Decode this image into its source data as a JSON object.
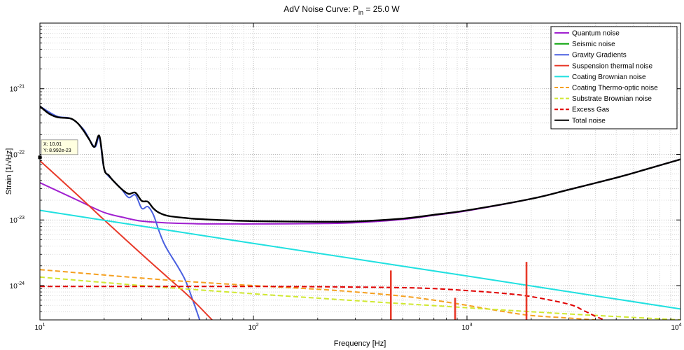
{
  "chart_data": {
    "type": "line",
    "title": "AdV Noise Curve: P",
    "title_sub": "in",
    "title_rest": " = 25.0 W",
    "xlabel": "Frequency [Hz]",
    "ylabel": "Strain [1/√Hz]",
    "xscale": "log",
    "yscale": "log",
    "xlim": [
      10,
      10000
    ],
    "ylim": [
      3e-25,
      1e-20
    ],
    "grid": true,
    "legend_position": "top-right",
    "x_ticks": [
      {
        "base": "10",
        "exp": "1",
        "value": 10
      },
      {
        "base": "10",
        "exp": "2",
        "value": 100
      },
      {
        "base": "10",
        "exp": "3",
        "value": 1000
      },
      {
        "base": "10",
        "exp": "4",
        "value": 10000
      }
    ],
    "y_ticks": [
      {
        "base": "10",
        "exp": "-24",
        "value": 1e-24
      },
      {
        "base": "10",
        "exp": "-23",
        "value": 1e-23
      },
      {
        "base": "10",
        "exp": "-22",
        "value": 1e-22
      },
      {
        "base": "10",
        "exp": "-21",
        "value": 1e-21
      }
    ],
    "series": [
      {
        "name": "Quantum noise",
        "color": "#a020d0",
        "dash": "solid",
        "width": 2,
        "x": [
          10,
          15,
          20,
          25,
          30,
          40,
          50,
          60,
          80,
          100,
          200,
          300,
          500,
          700,
          1000,
          2000,
          3000,
          5000,
          7000,
          10000
        ],
        "y": [
          3.7e-23,
          2e-23,
          1.3e-23,
          1.08e-23,
          9.6e-24,
          9e-24,
          8.8e-24,
          8.7e-24,
          8.7e-24,
          8.7e-24,
          8.8e-24,
          9.1e-24,
          1.02e-23,
          1.18e-23,
          1.38e-23,
          2.1e-23,
          2.9e-23,
          4.4e-23,
          6e-23,
          8.4e-23
        ]
      },
      {
        "name": "Seismic noise",
        "color": "#00a000",
        "dash": "solid",
        "width": 2,
        "x": [],
        "y": []
      },
      {
        "name": "Gravity Gradients",
        "color": "#4a60e0",
        "dash": "solid",
        "width": 2,
        "x": [
          10,
          12,
          14,
          16,
          18,
          19,
          20,
          22,
          24,
          26,
          28,
          30,
          32,
          34,
          36,
          38,
          40,
          44,
          48,
          52,
          56
        ],
        "y": [
          5.4e-22,
          3.8e-22,
          3.5e-22,
          2.4e-22,
          1.3e-22,
          1.8e-22,
          6e-23,
          4e-23,
          3e-23,
          2.2e-23,
          2.4e-23,
          1.5e-23,
          1.6e-23,
          1.2e-23,
          7e-24,
          4.5e-24,
          3.3e-24,
          2e-24,
          1.2e-24,
          6e-25,
          3e-25
        ]
      },
      {
        "name": "Suspension thermal noise",
        "color": "#e83a2a",
        "dash": "solid",
        "width": 2,
        "x": [
          10,
          15,
          20,
          30,
          40,
          50,
          64
        ],
        "y": [
          8e-23,
          2.4e-23,
          1e-23,
          3e-24,
          1.3e-24,
          6.8e-25,
          3e-25
        ]
      },
      {
        "name": "Coating Brownian noise",
        "color": "#20e0e0",
        "dash": "solid",
        "width": 2,
        "x": [
          10,
          100,
          1000,
          10000
        ],
        "y": [
          1.4e-23,
          4.4e-24,
          1.4e-24,
          4.4e-25
        ]
      },
      {
        "name": "Coating Thermo-optic noise",
        "color": "#f5a020",
        "dash": "dashed",
        "width": 2,
        "x": [
          10,
          30,
          50,
          100,
          200,
          300,
          500,
          700,
          1000,
          1500,
          2000,
          3000,
          4000
        ],
        "y": [
          1.75e-24,
          1.3e-24,
          1.15e-24,
          1e-24,
          8.8e-25,
          8e-25,
          6.9e-25,
          6e-25,
          5e-25,
          4e-25,
          3.5e-25,
          3.2e-25,
          3e-25
        ]
      },
      {
        "name": "Substrate Brownian noise",
        "color": "#d0e830",
        "dash": "dashed",
        "width": 2,
        "x": [
          10,
          30,
          100,
          300,
          1000,
          3000,
          10000
        ],
        "y": [
          1.35e-24,
          1e-24,
          7.5e-25,
          5.9e-25,
          4.6e-25,
          3.7e-25,
          3e-25
        ]
      },
      {
        "name": "Excess Gas",
        "color": "#e00000",
        "dash": "dashed",
        "width": 2,
        "x": [
          10,
          50,
          100,
          200,
          300,
          500,
          700,
          1000,
          1500,
          2000,
          3000,
          3500,
          4000,
          4400
        ],
        "y": [
          9.7e-25,
          9.7e-25,
          9.7e-25,
          9.6e-25,
          9.5e-25,
          9.3e-25,
          9e-25,
          8.4e-25,
          7.6e-25,
          6.8e-25,
          5.2e-25,
          4.2e-25,
          3.4e-25,
          3e-25
        ]
      },
      {
        "name": "Total noise",
        "color": "#000000",
        "dash": "solid",
        "width": 2.4,
        "x": [
          10,
          11,
          12,
          13,
          14,
          15,
          16,
          17,
          18,
          19,
          20,
          21,
          22,
          24,
          26,
          28,
          30,
          32,
          34,
          36,
          40,
          50,
          60,
          80,
          100,
          200,
          300,
          500,
          700,
          1000,
          2000,
          3000,
          5000,
          7000,
          10000
        ],
        "y": [
          5.4e-22,
          4.2e-22,
          3.7e-22,
          3.6e-22,
          3.5e-22,
          3e-22,
          2.3e-22,
          1.7e-22,
          1.3e-22,
          1.9e-22,
          6e-23,
          4.8e-23,
          4e-23,
          3e-23,
          2.5e-23,
          2.6e-23,
          1.95e-23,
          1.9e-23,
          1.5e-23,
          1.3e-23,
          1.15e-23,
          1.06e-23,
          1.02e-23,
          9.8e-24,
          9.6e-24,
          9.4e-24,
          9.5e-24,
          1.05e-23,
          1.2e-23,
          1.4e-23,
          2.1e-23,
          2.9e-23,
          4.4e-23,
          6e-23,
          8.4e-23
        ]
      }
    ],
    "spikes": [
      {
        "x": 440,
        "y": 1.7e-24,
        "color": "#e83a2a"
      },
      {
        "x": 880,
        "y": 6.5e-25,
        "color": "#e83a2a"
      },
      {
        "x": 1900,
        "y": 2.3e-24,
        "color": "#e83a2a"
      }
    ],
    "datatip": {
      "x": 10,
      "y": 8.992e-23,
      "label_x": "X: 10.01",
      "label_y": "Y: 8.992e-23"
    }
  }
}
